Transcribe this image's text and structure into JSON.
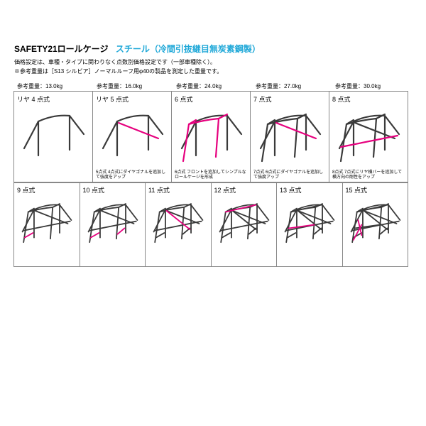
{
  "header": {
    "title": "SAFETY21ロールケージ",
    "subtitle": "スチール（冷間引抜継目無炭素鋼製）",
    "subtitle_color": "#1fa8d8",
    "desc1": "価格設定は、車種・タイプに関わりなく点数別価格設定です（一部車種除く）。",
    "desc2": "※参考重量は［S13 シルビア］ノーマルルーフ用φ40の製品を測定した重量です。"
  },
  "weights": [
    "参考重量：13.0kg",
    "参考重量：16.0kg",
    "参考重量：24.0kg",
    "参考重量：27.0kg",
    "参考重量：30.0kg"
  ],
  "row1": [
    {
      "label": "リヤ 4 点式",
      "note": "",
      "type": "r4"
    },
    {
      "label": "リヤ 5 点式",
      "note": "5点式 4点式にダイヤゴナルを追加して強度をアップ",
      "type": "r5"
    },
    {
      "label": "6 点式",
      "note": "6点式 フロントを追加してシンプルなロールケージを形成",
      "type": "p6"
    },
    {
      "label": "7 点式",
      "note": "7点式 6点式にダイヤゴナルを追加して強度アップ",
      "type": "p7"
    },
    {
      "label": "8 点式",
      "note": "8点式 7点式にリヤ横バーを追加して横方向の剛性をアップ",
      "type": "p8"
    }
  ],
  "row2": [
    {
      "label": "9 点式",
      "type": "p9"
    },
    {
      "label": "10 点式",
      "type": "p10"
    },
    {
      "label": "11 点式",
      "type": "p11"
    },
    {
      "label": "12 点式",
      "type": "p12"
    },
    {
      "label": "13 点式",
      "type": "p13"
    },
    {
      "label": "15 点式",
      "type": "p15"
    }
  ],
  "colors": {
    "pipe": "#3a3a3a",
    "accent": "#e6007e",
    "cell_border": "#888888"
  },
  "style": {
    "pipe_width": 2.2,
    "accent_width": 2.2
  }
}
